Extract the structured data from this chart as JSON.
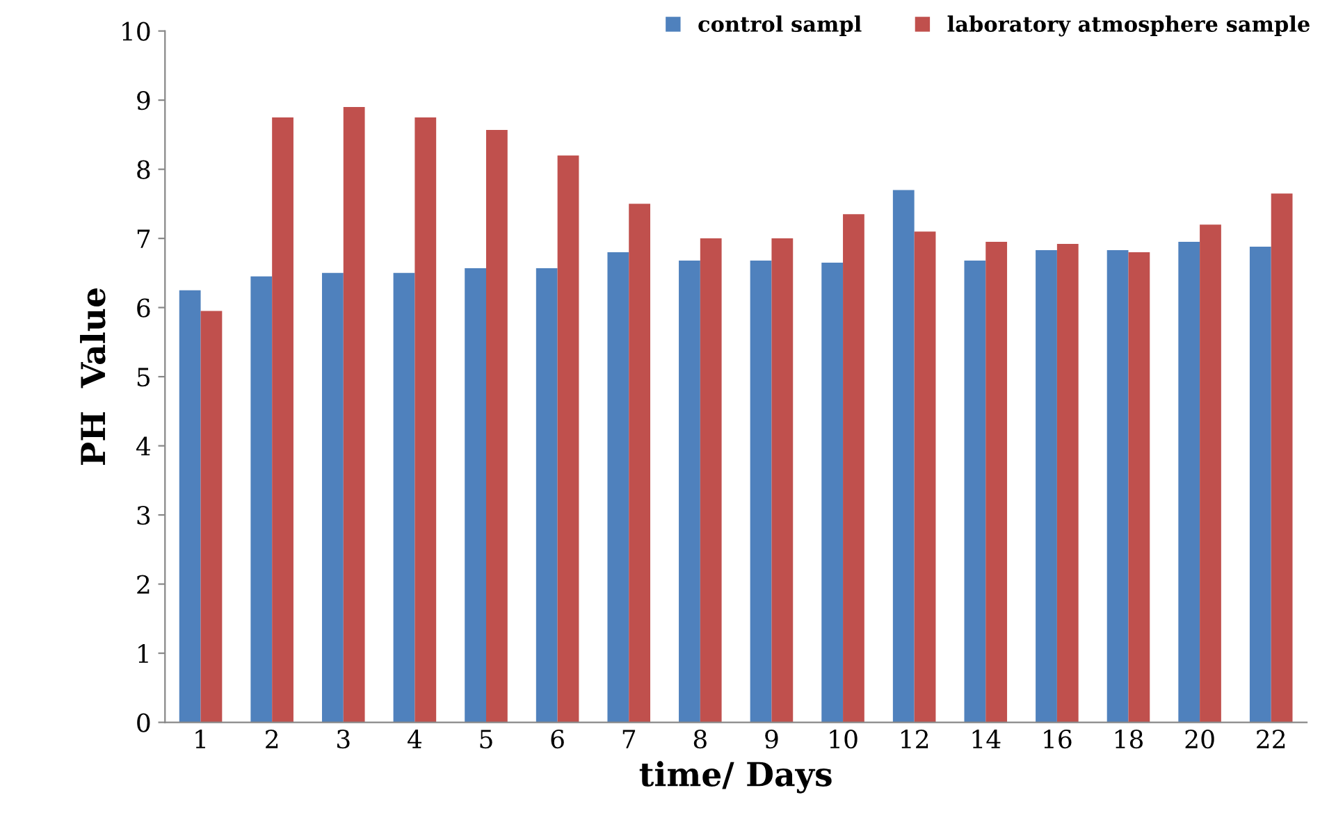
{
  "chart_data": {
    "type": "bar",
    "xlabel": "time/ Days",
    "ylabel": "PH  Value",
    "categories": [
      "1",
      "2",
      "3",
      "4",
      "5",
      "6",
      "7",
      "8",
      "9",
      "10",
      "12",
      "14",
      "16",
      "18",
      "20",
      "22"
    ],
    "series": [
      {
        "name": "control sampl",
        "color": "#4f81bd",
        "values": [
          6.25,
          6.45,
          6.5,
          6.5,
          6.57,
          6.57,
          6.8,
          6.68,
          6.68,
          6.65,
          7.7,
          6.68,
          6.83,
          6.83,
          6.95,
          6.88
        ]
      },
      {
        "name": "laboratory atmosphere sample",
        "color": "#c0504d",
        "values": [
          5.95,
          8.75,
          8.9,
          8.75,
          8.57,
          8.2,
          7.5,
          7.0,
          7.0,
          7.35,
          7.1,
          6.95,
          6.92,
          6.8,
          7.2,
          7.65
        ]
      }
    ],
    "ylim": [
      0,
      10
    ],
    "yticks": [
      0,
      1,
      2,
      3,
      4,
      5,
      6,
      7,
      8,
      9,
      10
    ],
    "grid": false,
    "legend": "top right"
  }
}
